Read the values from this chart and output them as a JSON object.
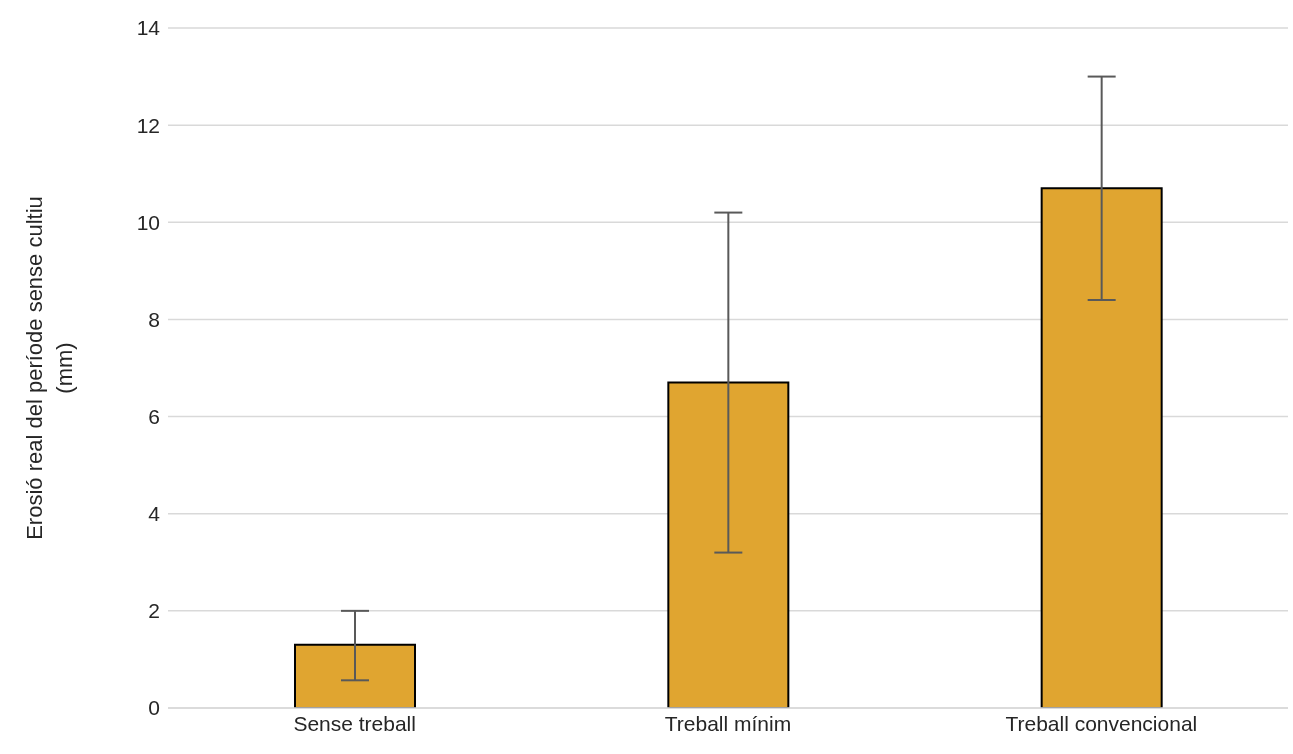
{
  "chart_data": {
    "type": "bar",
    "ylabel": "Erosió real del període sense cultiu (mm)",
    "categories": [
      "Sense treball",
      "Treball mínim",
      "Treball convencional"
    ],
    "values": [
      1.3,
      6.7,
      10.7
    ],
    "errors": [
      [
        0.57,
        2.0
      ],
      [
        3.2,
        10.2
      ],
      [
        8.4,
        13.0
      ]
    ],
    "color": "#e0a530",
    "ylim": [
      0,
      14
    ],
    "yticks": [
      0,
      2,
      4,
      6,
      8,
      10,
      12,
      14
    ],
    "grid": "y"
  }
}
